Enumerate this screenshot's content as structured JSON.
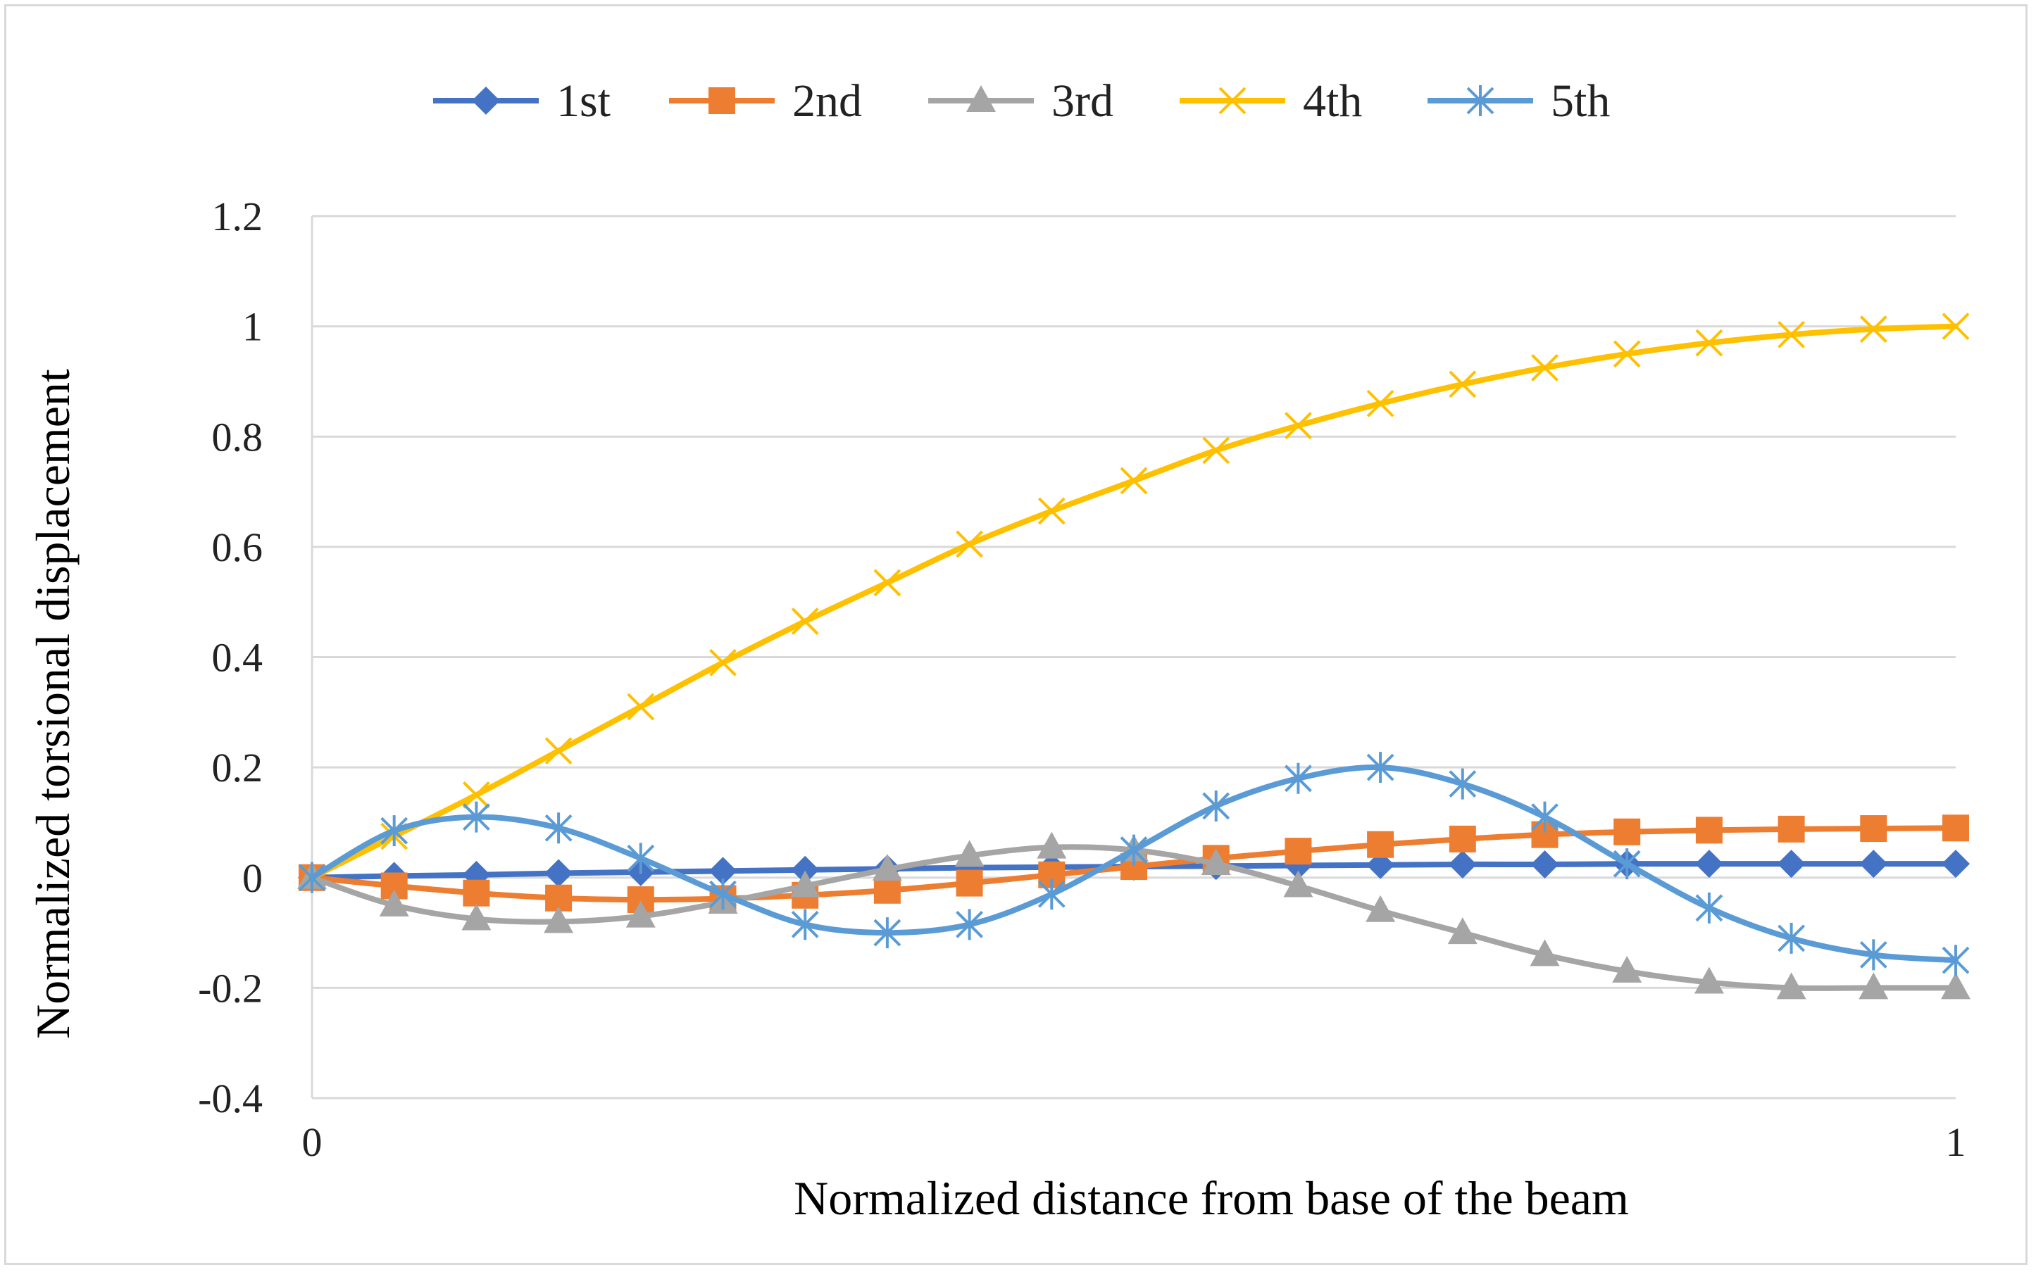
{
  "chart_data": {
    "type": "line",
    "title": "",
    "xlabel": "Normalized distance from base of the beam",
    "ylabel": "Normalized torsional displacement",
    "xlim": [
      0,
      1
    ],
    "ylim": [
      -0.4,
      1.2
    ],
    "x_tick_labels": [
      "0",
      "1"
    ],
    "y_tick_labels": [
      "1.2",
      "1",
      "0.8",
      "0.6",
      "0.4",
      "0.2",
      "0",
      "-0.2",
      "-0.4"
    ],
    "grid": "horizontal",
    "legend_position": "top",
    "x": [
      0,
      0.05,
      0.1,
      0.15,
      0.2,
      0.25,
      0.3,
      0.35,
      0.4,
      0.45,
      0.5,
      0.55,
      0.6,
      0.65,
      0.7,
      0.75,
      0.8,
      0.85,
      0.9,
      0.95,
      1.0
    ],
    "series": [
      {
        "name": "1st",
        "color": "#4472c4",
        "marker": "diamond",
        "values": [
          0,
          0.003,
          0.005,
          0.008,
          0.01,
          0.012,
          0.014,
          0.016,
          0.018,
          0.019,
          0.02,
          0.021,
          0.022,
          0.023,
          0.024,
          0.024,
          0.025,
          0.025,
          0.025,
          0.025,
          0.025
        ]
      },
      {
        "name": "2nd",
        "color": "#ed7d31",
        "marker": "square",
        "values": [
          0,
          -0.015,
          -0.028,
          -0.037,
          -0.04,
          -0.038,
          -0.032,
          -0.023,
          -0.01,
          0.005,
          0.02,
          0.035,
          0.048,
          0.06,
          0.07,
          0.078,
          0.083,
          0.086,
          0.088,
          0.089,
          0.09
        ]
      },
      {
        "name": "3rd",
        "color": "#a5a5a5",
        "marker": "triangle",
        "values": [
          0,
          -0.05,
          -0.075,
          -0.08,
          -0.07,
          -0.045,
          -0.015,
          0.015,
          0.04,
          0.055,
          0.05,
          0.025,
          -0.015,
          -0.06,
          -0.1,
          -0.14,
          -0.17,
          -0.19,
          -0.2,
          -0.2,
          -0.2
        ]
      },
      {
        "name": "4th",
        "color": "#ffc000",
        "marker": "x",
        "values": [
          0,
          0.075,
          0.15,
          0.23,
          0.31,
          0.39,
          0.465,
          0.535,
          0.605,
          0.665,
          0.72,
          0.775,
          0.82,
          0.86,
          0.895,
          0.925,
          0.95,
          0.97,
          0.985,
          0.995,
          1.0
        ]
      },
      {
        "name": "5th",
        "color": "#5b9bd5",
        "marker": "asterisk",
        "values": [
          0,
          0.085,
          0.11,
          0.09,
          0.035,
          -0.03,
          -0.085,
          -0.1,
          -0.085,
          -0.03,
          0.05,
          0.13,
          0.18,
          0.2,
          0.17,
          0.11,
          0.025,
          -0.055,
          -0.11,
          -0.14,
          -0.15
        ]
      }
    ]
  }
}
